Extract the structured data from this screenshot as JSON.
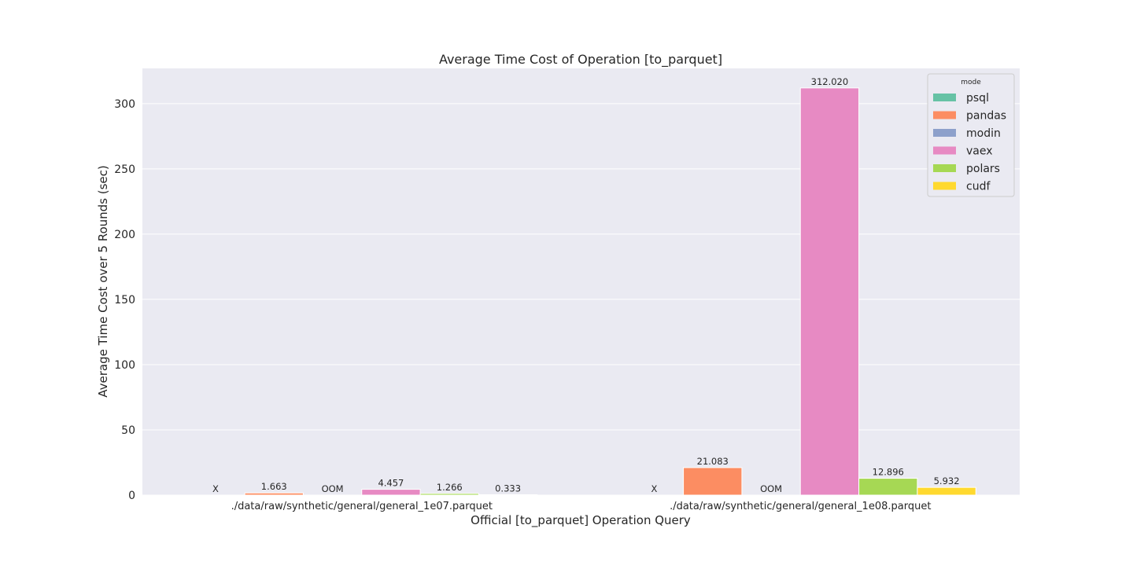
{
  "chart_data": {
    "type": "bar",
    "title": "Average Time Cost of Operation [to_parquet]",
    "xlabel": "Official [to_parquet] Operation Query",
    "ylabel": "Average Time Cost over 5 Rounds (sec)",
    "ylim": [
      0,
      327
    ],
    "yticks": [
      0,
      50,
      100,
      150,
      200,
      250,
      300
    ],
    "grid": true,
    "legend": {
      "title": "mode",
      "position": "top-right"
    },
    "categories": [
      "./data/raw/synthetic/general/general_1e07.parquet",
      "./data/raw/synthetic/general/general_1e08.parquet"
    ],
    "series": [
      {
        "name": "psql",
        "color": "#66c2a5",
        "values": [
          null,
          null
        ],
        "labels": [
          "X",
          "X"
        ]
      },
      {
        "name": "pandas",
        "color": "#fc8d62",
        "values": [
          1.663,
          21.083
        ],
        "labels": [
          "1.663",
          "21.083"
        ]
      },
      {
        "name": "modin",
        "color": "#8da0cb",
        "values": [
          null,
          null
        ],
        "labels": [
          "OOM",
          "OOM"
        ]
      },
      {
        "name": "vaex",
        "color": "#e78ac3",
        "values": [
          4.457,
          312.02
        ],
        "labels": [
          "4.457",
          "312.020"
        ]
      },
      {
        "name": "polars",
        "color": "#a6d854",
        "values": [
          1.266,
          12.896
        ],
        "labels": [
          "1.266",
          "12.896"
        ]
      },
      {
        "name": "cudf",
        "color": "#ffd92f",
        "values": [
          0.333,
          5.932
        ],
        "labels": [
          "0.333",
          "5.932"
        ]
      }
    ]
  }
}
